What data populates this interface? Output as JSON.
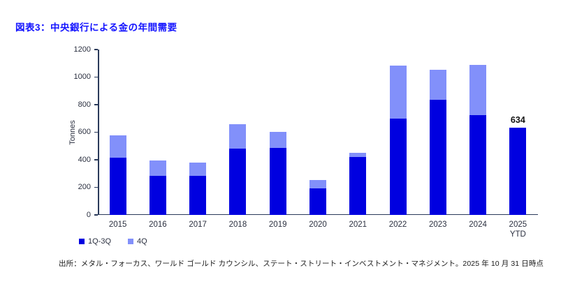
{
  "title": "図表3：中央銀行による金の年間需要",
  "source": "出所：メタル・フォーカス、ワールド ゴールド カウンシル、ステート・ストリート・インベストメント・マネジメント。2025 年 10 月 31 日時点",
  "colors": {
    "dark_blue": "#0000e0",
    "light_blue": "#8290fa",
    "axis": "#2a3a5a",
    "title_blue": "#1414ff",
    "tick_text": "#2b3040",
    "annotation_text": "#111111"
  },
  "chart_data": {
    "type": "bar",
    "stacked": true,
    "title": "図表3：中央銀行による金の年間需要",
    "ylabel": "Tonnes",
    "xlabel": "",
    "ylim": [
      0,
      1200
    ],
    "yticks": [
      0,
      200,
      400,
      600,
      800,
      1000,
      1200
    ],
    "grid": false,
    "legend_position": "bottom-left",
    "categories": [
      "2015",
      "2016",
      "2017",
      "2018",
      "2019",
      "2020",
      "2021",
      "2022",
      "2023",
      "2024",
      "2025\nYTD"
    ],
    "series": [
      {
        "name": "1Q-3Q",
        "color": "#0000e0",
        "values": [
          415,
          283,
          285,
          480,
          487,
          190,
          418,
          700,
          837,
          724,
          634
        ]
      },
      {
        "name": "4Q",
        "color": "#8290fa",
        "values": [
          164,
          112,
          94,
          176,
          118,
          65,
          32,
          382,
          214,
          366,
          0
        ]
      }
    ],
    "totals": [
      579,
      395,
      379,
      656,
      605,
      255,
      450,
      1082,
      1051,
      1090,
      634
    ],
    "annotations": [
      {
        "category_index": 10,
        "text": "634"
      }
    ]
  }
}
